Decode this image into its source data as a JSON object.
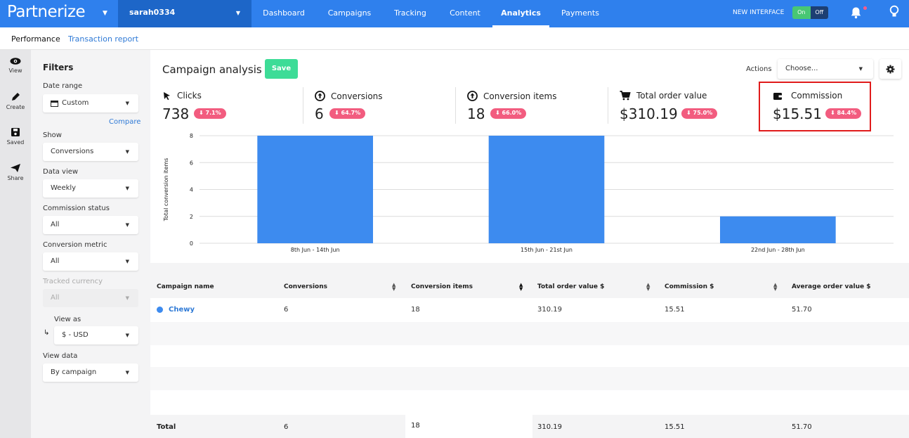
{
  "app": {
    "logo": "Partnerize",
    "account": "sarah0334"
  },
  "nav": [
    "Dashboard",
    "Campaigns",
    "Tracking",
    "Content",
    "Analytics",
    "Payments"
  ],
  "top_right": {
    "new_interface": "NEW INTERFACE",
    "toggle_on": "On",
    "toggle_off": "Off"
  },
  "subnav": {
    "performance": "Performance",
    "transaction_report": "Transaction report"
  },
  "rail": {
    "view": "View",
    "create": "Create",
    "saved": "Saved",
    "share": "Share"
  },
  "filters": {
    "title": "Filters",
    "date_range_label": "Date range",
    "date_range_value": "Custom",
    "compare": "Compare",
    "show_label": "Show",
    "show_value": "Conversions",
    "data_view_label": "Data view",
    "data_view_value": "Weekly",
    "commission_status_label": "Commission status",
    "commission_status_value": "All",
    "conversion_metric_label": "Conversion metric",
    "conversion_metric_value": "All",
    "tracked_currency_label": "Tracked currency",
    "tracked_currency_value": "All",
    "view_as_label": "View as",
    "view_as_value": "$ - USD",
    "view_data_label": "View data",
    "view_data_value": "By campaign"
  },
  "main": {
    "title": "Campaign analysis",
    "save": "Save",
    "actions_label": "Actions",
    "actions_placeholder": "Choose..."
  },
  "metrics": [
    {
      "label": "Clicks",
      "value": "738",
      "change": "7.1%"
    },
    {
      "label": "Conversions",
      "value": "6",
      "change": "64.7%"
    },
    {
      "label": "Conversion items",
      "value": "18",
      "change": "66.0%"
    },
    {
      "label": "Total order value",
      "value": "$310.19",
      "change": "75.0%"
    },
    {
      "label": "Commission",
      "value": "$15.51",
      "change": "84.4%"
    }
  ],
  "chart_data": {
    "type": "bar",
    "categories": [
      "8th Jun - 14th Jun",
      "15th Jun - 21st Jun",
      "22nd Jun - 28th Jun"
    ],
    "values": [
      8,
      8,
      2
    ],
    "ylabel": "Total conversion items",
    "ylim": [
      0,
      8
    ],
    "yticks": [
      "0",
      "2",
      "4",
      "6",
      "8"
    ],
    "grid": true,
    "color": "#3d8bef"
  },
  "table": {
    "headers": [
      "Campaign name",
      "Conversions",
      "Conversion items",
      "Total order value $",
      "Commission $",
      "Average order value $"
    ],
    "rows": [
      {
        "campaign": "Chewy",
        "conversions": "6",
        "items": "18",
        "order_value": "310.19",
        "commission": "15.51",
        "avg_order": "51.70"
      }
    ],
    "total": {
      "label": "Total",
      "conversions": "6",
      "items": "18",
      "order_value": "310.19",
      "commission": "15.51",
      "avg_order": "51.70"
    }
  },
  "colors": {
    "brand": "#2f80ed",
    "save": "#3ddc97",
    "badge": "#f25c7f",
    "highlight": "#e01b1b"
  }
}
